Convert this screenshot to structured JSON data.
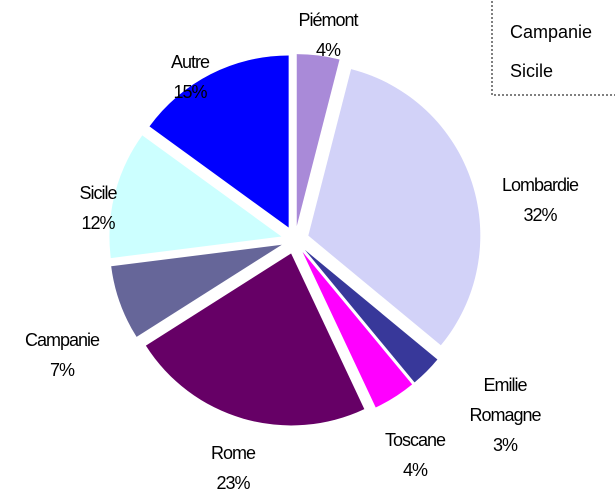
{
  "chart_data": {
    "type": "pie",
    "categories": [
      "Piémont",
      "Lombardie",
      "Emilie Romagne",
      "Toscane",
      "Rome",
      "Campanie",
      "Sicile",
      "Autre"
    ],
    "values": [
      4,
      32,
      3,
      4,
      23,
      7,
      12,
      15
    ],
    "value_labels": [
      "4%",
      "32%",
      "3%",
      "4%",
      "23%",
      "7%",
      "12%",
      "15%"
    ],
    "colors": [
      "#a98ad8",
      "#d2d2f8",
      "#38389a",
      "#ff00ff",
      "#660066",
      "#666699",
      "#ccffff",
      "#0000ff"
    ],
    "legend": "top-right"
  }
}
